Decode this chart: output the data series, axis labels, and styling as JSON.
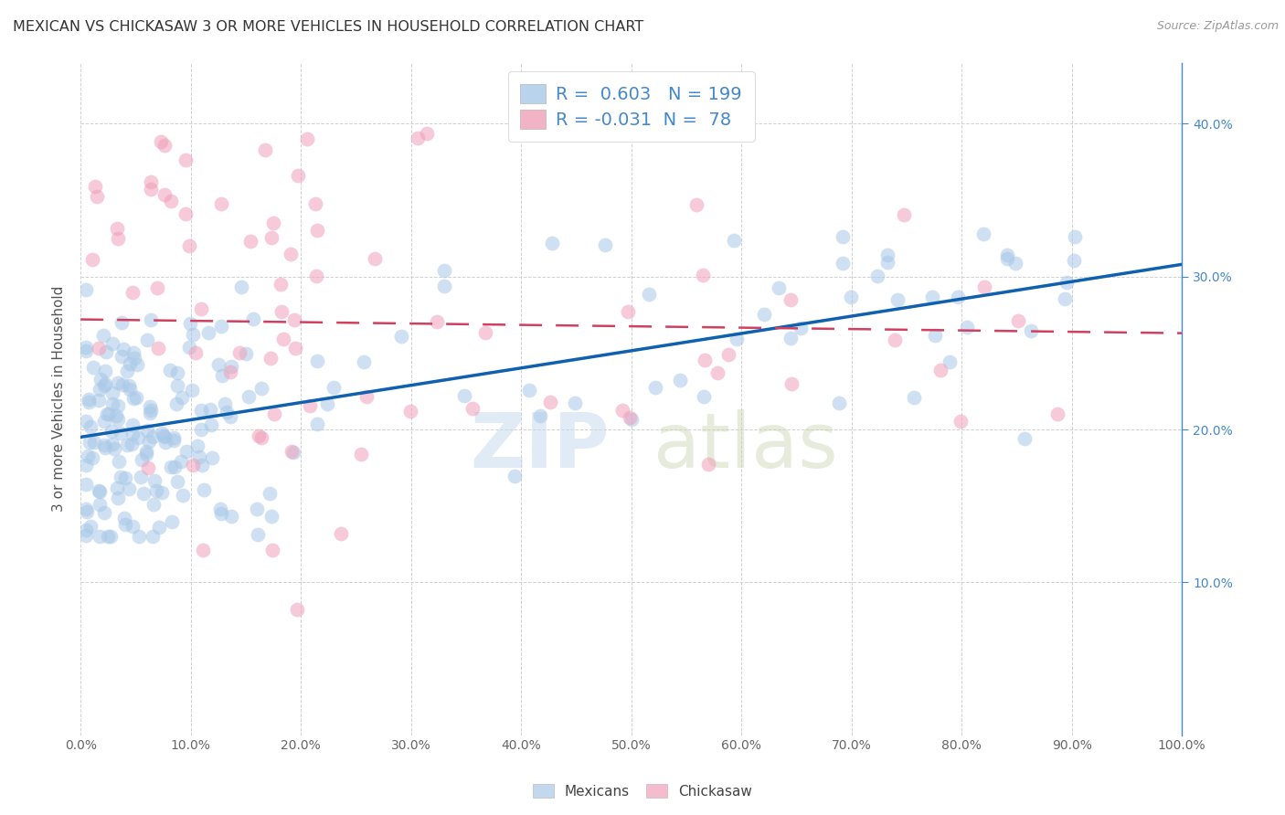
{
  "title": "MEXICAN VS CHICKASAW 3 OR MORE VEHICLES IN HOUSEHOLD CORRELATION CHART",
  "source": "Source: ZipAtlas.com",
  "ylabel": "3 or more Vehicles in Household",
  "legend_mexicans": "Mexicans",
  "legend_chickasaw": "Chickasaw",
  "r_mexican": 0.603,
  "n_mexican": 199,
  "r_chickasaw": -0.031,
  "n_chickasaw": 78,
  "xlim": [
    0.0,
    1.0
  ],
  "ylim": [
    0.0,
    0.44
  ],
  "blue_color": "#a8c8e8",
  "pink_color": "#f0a0b8",
  "blue_line_color": "#1060b0",
  "pink_line_color": "#d04060",
  "grid_color": "#cccccc",
  "watermark_zip": "ZIP",
  "watermark_atlas": "atlas",
  "right_axis_color": "#4488cc",
  "seed": 7,
  "blue_trend_x0": 0.0,
  "blue_trend_y0": 0.195,
  "blue_trend_x1": 1.0,
  "blue_trend_y1": 0.308,
  "pink_trend_x0": 0.0,
  "pink_trend_y0": 0.272,
  "pink_trend_x1": 1.0,
  "pink_trend_y1": 0.263
}
